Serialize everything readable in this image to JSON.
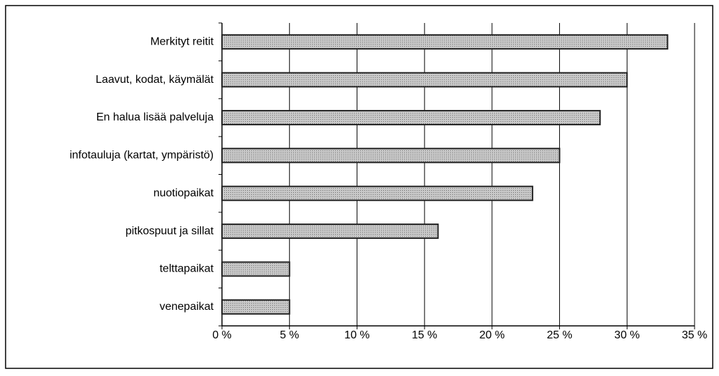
{
  "chart_data": {
    "type": "bar",
    "orientation": "horizontal",
    "categories": [
      "Merkityt reitit",
      "Laavut, kodat, käymälät",
      "En halua lisää palveluja",
      "infotauluja (kartat, ympäristö)",
      "nuotiopaikat",
      "pitkospuut ja sillat",
      "telttapaikat",
      "venepaikat"
    ],
    "values": [
      33,
      30,
      28,
      25,
      23,
      16,
      5,
      5
    ],
    "color": "#b8b8b8",
    "xlim": [
      0,
      35
    ],
    "xticks": [
      {
        "value": 0,
        "label": "0 %"
      },
      {
        "value": 5,
        "label": "5 %"
      },
      {
        "value": 10,
        "label": "10 %"
      },
      {
        "value": 15,
        "label": "15 %"
      },
      {
        "value": 20,
        "label": "20 %"
      },
      {
        "value": 25,
        "label": "25 %"
      },
      {
        "value": 30,
        "label": "30 %"
      },
      {
        "value": 35,
        "label": "35 %"
      }
    ],
    "grid": true
  }
}
